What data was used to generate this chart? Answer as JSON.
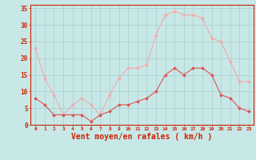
{
  "x": [
    0,
    1,
    2,
    3,
    4,
    5,
    6,
    7,
    8,
    9,
    10,
    11,
    12,
    13,
    14,
    15,
    16,
    17,
    18,
    19,
    20,
    21,
    22,
    23
  ],
  "wind_avg": [
    8,
    6,
    3,
    3,
    3,
    3,
    1,
    3,
    4,
    6,
    6,
    7,
    8,
    10,
    15,
    17,
    15,
    17,
    17,
    15,
    9,
    8,
    5,
    4
  ],
  "wind_gust": [
    23,
    14,
    9,
    3,
    6,
    8,
    6,
    3,
    9,
    14,
    17,
    17,
    18,
    27,
    33,
    34,
    33,
    33,
    32,
    26,
    25,
    19,
    13,
    13
  ],
  "color_avg": "#d9534f",
  "color_gust": "#f4a9a8",
  "bg_color": "#c8e8e8",
  "grid_color": "#aacccc",
  "xlabel": "Vent moyen/en rafales ( km/h )",
  "xlabel_color": "#cc2200",
  "tick_color": "#cc2200",
  "ylim": [
    0,
    36
  ],
  "yticks": [
    0,
    5,
    10,
    15,
    20,
    25,
    30,
    35
  ],
  "xlim": [
    -0.5,
    23.5
  ]
}
